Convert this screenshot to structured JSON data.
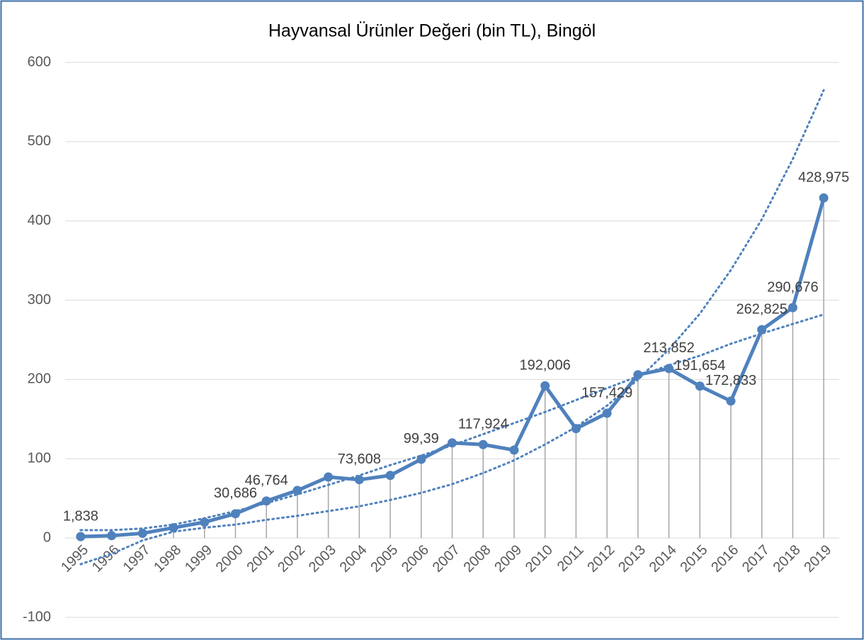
{
  "chart_data": {
    "type": "line",
    "title": "Hayvansal Ürünler Değeri (bin TL), Bingöl",
    "categories": [
      "1995",
      "1996",
      "1997",
      "1998",
      "1999",
      "2000",
      "2001",
      "2002",
      "2003",
      "2004",
      "2005",
      "2006",
      "2007",
      "2008",
      "2009",
      "2010",
      "2011",
      "2012",
      "2013",
      "2014",
      "2015",
      "2016",
      "2017",
      "2018",
      "2019"
    ],
    "series": [
      {
        "color": "#4f81bd",
        "values": [
          1.838,
          3,
          6,
          13,
          20,
          30.686,
          46.764,
          60,
          77,
          73.608,
          79,
          99.39,
          120,
          117.924,
          111,
          192.006,
          138,
          157.429,
          206,
          213.852,
          191.654,
          172.833,
          262.825,
          290.676,
          428.975
        ],
        "value_labels": [
          "1,838",
          null,
          null,
          null,
          null,
          "30,686",
          "46,764",
          null,
          null,
          "73,608",
          null,
          "99,39",
          null,
          "117,924",
          null,
          "192,006",
          null,
          "157,429",
          null,
          "213,852",
          "191,654",
          "172,833",
          "262,825",
          "290,676",
          "428,975"
        ]
      }
    ],
    "trendlines": [
      {
        "color": "#4f81bd",
        "values": [
          -33,
          -20,
          -3,
          8,
          13,
          17,
          23,
          28,
          34,
          40,
          48,
          57,
          68,
          82,
          98,
          118,
          140,
          167,
          200,
          238,
          283,
          338,
          402,
          478,
          565
        ]
      },
      {
        "color": "#4f81bd",
        "values": [
          10,
          10,
          12,
          17,
          25,
          34,
          44,
          55,
          67,
          79,
          92,
          104,
          117,
          131,
          145,
          159,
          174,
          189,
          204,
          218,
          230,
          245,
          258,
          270,
          282
        ]
      }
    ],
    "drop_lines": true,
    "ylim": [
      -100,
      600
    ],
    "yticks": [
      -100,
      0,
      100,
      200,
      300,
      400,
      500,
      600
    ],
    "grid": true
  }
}
